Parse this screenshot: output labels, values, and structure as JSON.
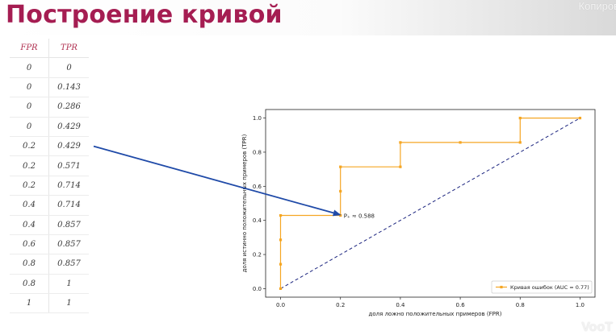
{
  "page": {
    "title": "Построение кривой",
    "watermark": "Копиров"
  },
  "table": {
    "headers": [
      "FPR",
      "TPR"
    ],
    "rows": [
      [
        "0",
        "0"
      ],
      [
        "0",
        "0.143"
      ],
      [
        "0",
        "0.286"
      ],
      [
        "0",
        "0.429"
      ],
      [
        "0.2",
        "0.429"
      ],
      [
        "0.2",
        "0.571"
      ],
      [
        "0.2",
        "0.714"
      ],
      [
        "0.4",
        "0.714"
      ],
      [
        "0.4",
        "0.857"
      ],
      [
        "0.6",
        "0.857"
      ],
      [
        "0.8",
        "0.857"
      ],
      [
        "0.8",
        "1"
      ],
      [
        "1",
        "1"
      ]
    ]
  },
  "chart_data": {
    "type": "line",
    "xlabel": "доля ложно положительных примеров (FPR)",
    "ylabel": "доля истинно положительных примеров (TPR)",
    "xlim": [
      -0.05,
      1.05
    ],
    "ylim": [
      -0.05,
      1.05
    ],
    "x_ticks": [
      "0.0",
      "0.2",
      "0.4",
      "0.6",
      "0.8",
      "1.0"
    ],
    "y_ticks": [
      "0.0",
      "0.2",
      "0.4",
      "0.6",
      "0.8",
      "1.0"
    ],
    "grid": false,
    "legend_position": "lower-right",
    "series": [
      {
        "name": "Кривая ошибок (AUC = 0.77)",
        "color": "#f5a623",
        "style": "step-line-with-markers",
        "x": [
          0,
          0,
          0,
          0,
          0.2,
          0.2,
          0.2,
          0.4,
          0.4,
          0.6,
          0.8,
          0.8,
          1
        ],
        "y": [
          0,
          0.143,
          0.286,
          0.429,
          0.429,
          0.571,
          0.714,
          0.714,
          0.857,
          0.857,
          0.857,
          1,
          1
        ]
      },
      {
        "color": "#1a237e",
        "style": "dashed",
        "x": [
          0,
          1
        ],
        "y": [
          0,
          1
        ]
      }
    ],
    "annotation": {
      "text": "P₊ ≈ 0.588",
      "x": 0.2,
      "y": 0.429
    }
  },
  "arrow": {
    "color": "#1f4aa8",
    "from_row": 4,
    "to_point": [
      0.2,
      0.429
    ]
  },
  "logo": {
    "text": "VooT"
  }
}
